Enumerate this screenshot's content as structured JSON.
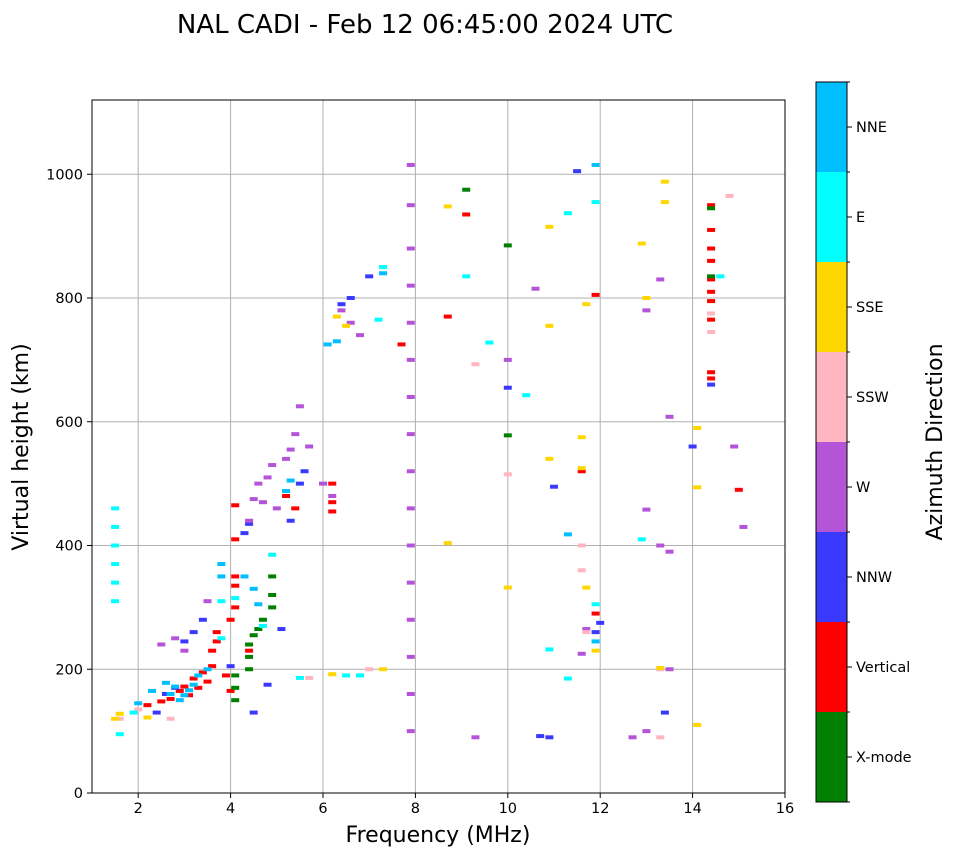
{
  "chart_data": {
    "type": "scatter",
    "title": "NAL CADI - Feb 12 06:45:00 2024 UTC",
    "xlabel": "Frequency (MHz)",
    "ylabel": "Virtual height (km)",
    "xlim": [
      1,
      16
    ],
    "ylim": [
      0,
      1120
    ],
    "xticks": [
      2,
      4,
      6,
      8,
      10,
      12,
      14,
      16
    ],
    "yticks": [
      0,
      200,
      400,
      600,
      800,
      1000
    ],
    "grid": true,
    "colorbar": {
      "title": "Azimuth Direction",
      "categories": [
        {
          "label": "X-mode",
          "color": "#008000"
        },
        {
          "label": "Vertical",
          "color": "#ff0000"
        },
        {
          "label": "NNW",
          "color": "#3a3aff"
        },
        {
          "label": "W",
          "color": "#b455d8"
        },
        {
          "label": "SSW",
          "color": "#ffb6c1"
        },
        {
          "label": "SSE",
          "color": "#ffd700"
        },
        {
          "label": "E",
          "color": "#00ffff"
        },
        {
          "label": "NNE",
          "color": "#00bfff"
        }
      ]
    },
    "series": [
      {
        "name": "Vertical",
        "points": [
          [
            2.2,
            142
          ],
          [
            2.5,
            148
          ],
          [
            2.7,
            152
          ],
          [
            2.9,
            165
          ],
          [
            3.0,
            172
          ],
          [
            3.1,
            158
          ],
          [
            3.2,
            185
          ],
          [
            3.3,
            170
          ],
          [
            3.4,
            195
          ],
          [
            3.5,
            180
          ],
          [
            3.6,
            205
          ],
          [
            3.6,
            230
          ],
          [
            3.7,
            245
          ],
          [
            3.7,
            260
          ],
          [
            3.9,
            190
          ],
          [
            4.0,
            165
          ],
          [
            4.0,
            280
          ],
          [
            4.1,
            300
          ],
          [
            4.1,
            335
          ],
          [
            4.1,
            350
          ],
          [
            4.1,
            410
          ],
          [
            4.1,
            465
          ],
          [
            4.4,
            230
          ],
          [
            5.2,
            480
          ],
          [
            5.4,
            460
          ],
          [
            6.2,
            455
          ],
          [
            6.2,
            470
          ],
          [
            6.2,
            500
          ],
          [
            7.7,
            725
          ],
          [
            8.7,
            770
          ],
          [
            9.1,
            935
          ],
          [
            11.6,
            520
          ],
          [
            11.9,
            290
          ],
          [
            11.9,
            805
          ],
          [
            14.4,
            950
          ],
          [
            14.4,
            910
          ],
          [
            14.4,
            880
          ],
          [
            14.4,
            860
          ],
          [
            14.4,
            830
          ],
          [
            14.4,
            810
          ],
          [
            14.4,
            795
          ],
          [
            14.4,
            765
          ],
          [
            14.4,
            680
          ],
          [
            14.4,
            670
          ],
          [
            15.0,
            490
          ]
        ]
      },
      {
        "name": "X-mode",
        "points": [
          [
            4.1,
            150
          ],
          [
            4.1,
            170
          ],
          [
            4.1,
            190
          ],
          [
            4.4,
            200
          ],
          [
            4.4,
            220
          ],
          [
            4.4,
            240
          ],
          [
            4.5,
            255
          ],
          [
            4.6,
            265
          ],
          [
            4.7,
            280
          ],
          [
            4.9,
            300
          ],
          [
            4.9,
            320
          ],
          [
            4.9,
            350
          ],
          [
            9.1,
            975
          ],
          [
            10.0,
            885
          ],
          [
            10.0,
            578
          ],
          [
            14.4,
            945
          ],
          [
            14.4,
            835
          ]
        ]
      },
      {
        "name": "NNW",
        "points": [
          [
            2.4,
            130
          ],
          [
            2.6,
            160
          ],
          [
            2.8,
            170
          ],
          [
            3.0,
            245
          ],
          [
            3.2,
            260
          ],
          [
            3.4,
            280
          ],
          [
            4.0,
            205
          ],
          [
            4.3,
            420
          ],
          [
            4.4,
            435
          ],
          [
            4.5,
            130
          ],
          [
            4.8,
            175
          ],
          [
            5.1,
            265
          ],
          [
            5.3,
            440
          ],
          [
            5.5,
            500
          ],
          [
            5.6,
            520
          ],
          [
            6.4,
            790
          ],
          [
            6.6,
            800
          ],
          [
            7.0,
            835
          ],
          [
            10.0,
            655
          ],
          [
            10.7,
            92
          ],
          [
            10.9,
            90
          ],
          [
            11.0,
            495
          ],
          [
            11.5,
            1005
          ],
          [
            11.9,
            260
          ],
          [
            12.0,
            275
          ],
          [
            13.4,
            130
          ],
          [
            14.0,
            560
          ],
          [
            14.4,
            660
          ]
        ]
      },
      {
        "name": "W",
        "points": [
          [
            2.5,
            240
          ],
          [
            2.8,
            250
          ],
          [
            3.0,
            230
          ],
          [
            3.5,
            310
          ],
          [
            4.4,
            440
          ],
          [
            4.5,
            475
          ],
          [
            4.6,
            500
          ],
          [
            4.7,
            470
          ],
          [
            4.8,
            510
          ],
          [
            4.9,
            530
          ],
          [
            5.0,
            460
          ],
          [
            5.2,
            540
          ],
          [
            5.3,
            555
          ],
          [
            5.4,
            580
          ],
          [
            5.5,
            625
          ],
          [
            5.7,
            560
          ],
          [
            6.0,
            500
          ],
          [
            6.2,
            480
          ],
          [
            6.4,
            780
          ],
          [
            6.6,
            760
          ],
          [
            6.8,
            740
          ],
          [
            7.9,
            1015
          ],
          [
            7.9,
            950
          ],
          [
            7.9,
            880
          ],
          [
            7.9,
            820
          ],
          [
            7.9,
            760
          ],
          [
            7.9,
            700
          ],
          [
            7.9,
            640
          ],
          [
            7.9,
            580
          ],
          [
            7.9,
            520
          ],
          [
            7.9,
            460
          ],
          [
            7.9,
            400
          ],
          [
            7.9,
            340
          ],
          [
            7.9,
            280
          ],
          [
            7.9,
            220
          ],
          [
            7.9,
            160
          ],
          [
            7.9,
            100
          ],
          [
            9.3,
            90
          ],
          [
            10.0,
            700
          ],
          [
            10.6,
            815
          ],
          [
            11.6,
            225
          ],
          [
            11.7,
            265
          ],
          [
            12.7,
            90
          ],
          [
            13.0,
            458
          ],
          [
            13.0,
            780
          ],
          [
            13.0,
            100
          ],
          [
            13.3,
            830
          ],
          [
            13.3,
            400
          ],
          [
            13.5,
            390
          ],
          [
            13.5,
            608
          ],
          [
            13.5,
            200
          ],
          [
            14.9,
            560
          ],
          [
            15.1,
            430
          ]
        ]
      },
      {
        "name": "SSW",
        "points": [
          [
            1.6,
            120
          ],
          [
            2.0,
            135
          ],
          [
            2.7,
            120
          ],
          [
            5.7,
            186
          ],
          [
            7.0,
            200
          ],
          [
            9.3,
            693
          ],
          [
            10.0,
            515
          ],
          [
            11.6,
            400
          ],
          [
            11.6,
            360
          ],
          [
            11.7,
            260
          ],
          [
            13.3,
            200
          ],
          [
            13.3,
            90
          ],
          [
            14.4,
            745
          ],
          [
            14.4,
            775
          ],
          [
            14.8,
            965
          ]
        ]
      },
      {
        "name": "SSE",
        "points": [
          [
            1.5,
            120
          ],
          [
            1.6,
            128
          ],
          [
            2.2,
            122
          ],
          [
            6.3,
            770
          ],
          [
            6.5,
            755
          ],
          [
            6.2,
            192
          ],
          [
            7.3,
            200
          ],
          [
            8.7,
            948
          ],
          [
            8.7,
            404
          ],
          [
            10.0,
            332
          ],
          [
            10.9,
            915
          ],
          [
            10.9,
            755
          ],
          [
            10.9,
            540
          ],
          [
            11.6,
            525
          ],
          [
            11.6,
            575
          ],
          [
            11.7,
            332
          ],
          [
            11.7,
            790
          ],
          [
            11.9,
            230
          ],
          [
            12.9,
            888
          ],
          [
            13.0,
            800
          ],
          [
            13.3,
            202
          ],
          [
            13.4,
            988
          ],
          [
            13.4,
            955
          ],
          [
            14.1,
            590
          ],
          [
            14.1,
            494
          ],
          [
            14.1,
            110
          ]
        ]
      },
      {
        "name": "E",
        "points": [
          [
            1.5,
            310
          ],
          [
            1.5,
            340
          ],
          [
            1.5,
            370
          ],
          [
            1.5,
            400
          ],
          [
            1.5,
            430
          ],
          [
            1.5,
            460
          ],
          [
            1.6,
            95
          ],
          [
            1.9,
            130
          ],
          [
            3.8,
            250
          ],
          [
            3.8,
            310
          ],
          [
            4.1,
            315
          ],
          [
            4.7,
            270
          ],
          [
            4.9,
            385
          ],
          [
            5.5,
            186
          ],
          [
            6.5,
            190
          ],
          [
            6.8,
            190
          ],
          [
            7.2,
            765
          ],
          [
            7.3,
            850
          ],
          [
            9.1,
            835
          ],
          [
            9.6,
            728
          ],
          [
            10.4,
            643
          ],
          [
            10.9,
            232
          ],
          [
            11.3,
            937
          ],
          [
            11.3,
            185
          ],
          [
            11.9,
            955
          ],
          [
            11.9,
            305
          ],
          [
            12.9,
            410
          ],
          [
            14.6,
            835
          ]
        ]
      },
      {
        "name": "NNE",
        "points": [
          [
            2.0,
            145
          ],
          [
            2.3,
            165
          ],
          [
            2.6,
            178
          ],
          [
            2.7,
            160
          ],
          [
            2.8,
            172
          ],
          [
            2.9,
            150
          ],
          [
            3.0,
            158
          ],
          [
            3.1,
            166
          ],
          [
            3.2,
            175
          ],
          [
            3.3,
            190
          ],
          [
            3.5,
            200
          ],
          [
            3.8,
            350
          ],
          [
            3.8,
            370
          ],
          [
            4.3,
            350
          ],
          [
            4.5,
            330
          ],
          [
            4.6,
            305
          ],
          [
            5.2,
            488
          ],
          [
            5.3,
            505
          ],
          [
            6.1,
            725
          ],
          [
            6.3,
            730
          ],
          [
            7.3,
            840
          ],
          [
            11.3,
            418
          ],
          [
            11.9,
            1015
          ],
          [
            11.9,
            245
          ]
        ]
      }
    ]
  }
}
